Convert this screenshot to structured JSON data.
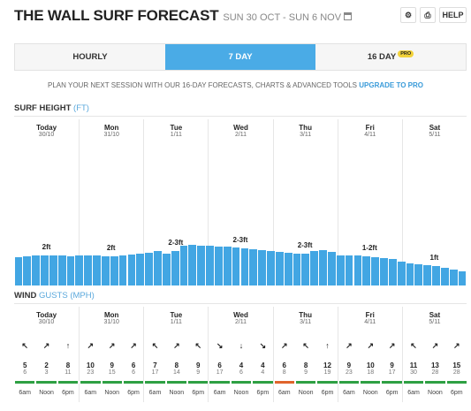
{
  "header": {
    "title": "THE WALL SURF FORECAST",
    "date_range": "SUN 30 OCT - SUN 6 NOV",
    "settings_icon": "gear-icon",
    "print_icon": "print-icon",
    "help_label": "HELP"
  },
  "tabs": [
    {
      "label": "HOURLY",
      "active": false
    },
    {
      "label": "7 DAY",
      "active": true
    },
    {
      "label": "16 DAY",
      "active": false,
      "badge": "PRO"
    }
  ],
  "promo": {
    "text": "PLAN YOUR NEXT SESSION WITH OUR 16-DAY FORECASTS, CHARTS & ADVANCED TOOLS",
    "link": "UPGRADE TO PRO"
  },
  "surf": {
    "title": "SURF HEIGHT",
    "unit": "(FT)"
  },
  "wind": {
    "title": "WIND",
    "gusts": "GUSTS",
    "unit": "(MPH)"
  },
  "days": [
    {
      "name": "Today",
      "date": "30/10",
      "surf_label": "2ft"
    },
    {
      "name": "Mon",
      "date": "31/10",
      "surf_label": "2ft"
    },
    {
      "name": "Tue",
      "date": "1/11",
      "surf_label": "2-3ft"
    },
    {
      "name": "Wed",
      "date": "2/11",
      "surf_label": "2-3ft"
    },
    {
      "name": "Thu",
      "date": "3/11",
      "surf_label": "2-3ft"
    },
    {
      "name": "Fri",
      "date": "4/11",
      "surf_label": "1-2ft"
    },
    {
      "name": "Sat",
      "date": "5/11",
      "surf_label": "1ft"
    }
  ],
  "chart_data": {
    "type": "bar",
    "title": "SURF HEIGHT",
    "ylabel": "(FT)",
    "unit": "ft",
    "values": [
      1.7,
      1.75,
      1.8,
      1.8,
      1.8,
      1.8,
      1.75,
      1.8,
      1.8,
      1.8,
      1.75,
      1.75,
      1.8,
      1.85,
      1.9,
      1.95,
      2.05,
      1.9,
      2.05,
      2.4,
      2.45,
      2.4,
      2.4,
      2.35,
      2.35,
      2.3,
      2.25,
      2.2,
      2.15,
      2.05,
      2.0,
      1.95,
      1.9,
      1.9,
      2.05,
      2.15,
      2.0,
      1.8,
      1.8,
      1.8,
      1.75,
      1.7,
      1.65,
      1.6,
      1.45,
      1.35,
      1.3,
      1.2,
      1.15,
      1.05,
      0.95,
      0.85
    ],
    "ylim": [
      0,
      10
    ]
  },
  "wind_data": {
    "times": [
      "6am",
      "Noon",
      "6pm"
    ],
    "days": [
      {
        "arrows": [
          "↖",
          "↗",
          "↑"
        ],
        "speeds": [
          5,
          2,
          8
        ],
        "gusts": [
          6,
          3,
          11
        ],
        "colors": [
          "#2ea043",
          "#2ea043",
          "#2ea043"
        ]
      },
      {
        "arrows": [
          "↗",
          "↗",
          "↗"
        ],
        "speeds": [
          10,
          9,
          6
        ],
        "gusts": [
          23,
          15,
          6
        ],
        "colors": [
          "#2ea043",
          "#2ea043",
          "#2ea043"
        ]
      },
      {
        "arrows": [
          "↖",
          "↗",
          "↖"
        ],
        "speeds": [
          7,
          8,
          9
        ],
        "gusts": [
          17,
          14,
          9
        ],
        "colors": [
          "#2ea043",
          "#2ea043",
          "#2ea043"
        ]
      },
      {
        "arrows": [
          "↘",
          "↓",
          "↘"
        ],
        "speeds": [
          6,
          4,
          4
        ],
        "gusts": [
          17,
          6,
          4
        ],
        "colors": [
          "#2ea043",
          "#2ea043",
          "#2ea043"
        ]
      },
      {
        "arrows": [
          "↗",
          "↖",
          "↑"
        ],
        "speeds": [
          6,
          8,
          12
        ],
        "gusts": [
          8,
          9,
          19
        ],
        "colors": [
          "#e0642c",
          "#2ea043",
          "#2ea043"
        ]
      },
      {
        "arrows": [
          "↗",
          "↗",
          "↗"
        ],
        "speeds": [
          9,
          10,
          9
        ],
        "gusts": [
          23,
          18,
          17
        ],
        "colors": [
          "#2ea043",
          "#2ea043",
          "#2ea043"
        ]
      },
      {
        "arrows": [
          "↖",
          "↗",
          "↗"
        ],
        "speeds": [
          11,
          13,
          15
        ],
        "gusts": [
          30,
          28,
          28
        ],
        "colors": [
          "#2ea043",
          "#2ea043",
          "#2ea043"
        ]
      }
    ]
  }
}
